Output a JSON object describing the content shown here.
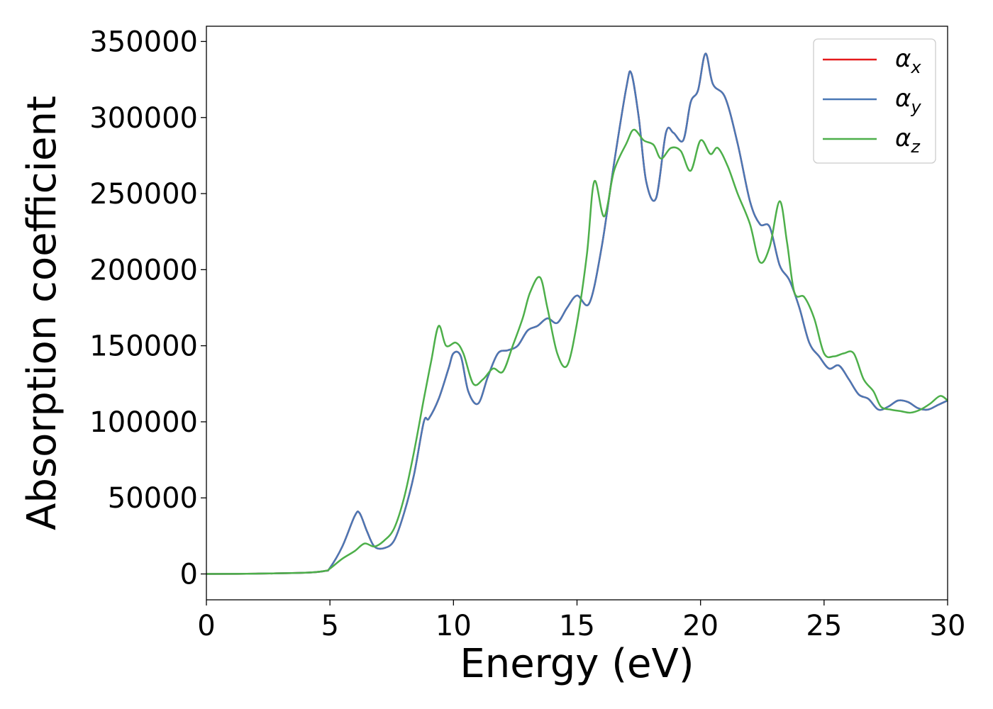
{
  "chart_data": {
    "type": "line",
    "title": "",
    "xlabel": "Energy (eV)",
    "ylabel": "Absorption coefficient",
    "xlim": [
      0,
      30
    ],
    "ylim": [
      -17000,
      360000
    ],
    "xticks": [
      0,
      5,
      10,
      15,
      20,
      25,
      30
    ],
    "xtick_labels": [
      "0",
      "5",
      "10",
      "15",
      "20",
      "25",
      "30"
    ],
    "yticks": [
      0,
      50000,
      100000,
      150000,
      200000,
      250000,
      300000,
      350000
    ],
    "ytick_labels": [
      "0",
      "50000",
      "100000",
      "150000",
      "200000",
      "250000",
      "300000",
      "350000"
    ],
    "grid": false,
    "legend_position": "top-right",
    "series": [
      {
        "name": "α",
        "subscript": "x",
        "color": "#e41a1c",
        "x": [
          0,
          2,
          4,
          4.8,
          5.0,
          5.5,
          6.0,
          6.2,
          6.5,
          6.8,
          7.2,
          7.6,
          8.0,
          8.4,
          8.8,
          9.0,
          9.4,
          9.8,
          10.0,
          10.3,
          10.6,
          11.0,
          11.4,
          11.8,
          12.2,
          12.6,
          13.0,
          13.4,
          13.8,
          14.2,
          14.6,
          15.0,
          15.5,
          16.0,
          16.5,
          17.0,
          17.2,
          17.5,
          17.8,
          18.2,
          18.6,
          18.9,
          19.3,
          19.6,
          19.9,
          20.2,
          20.5,
          21.0,
          21.5,
          22.0,
          22.4,
          22.8,
          23.2,
          23.6,
          24.0,
          24.4,
          24.8,
          25.2,
          25.6,
          26.0,
          26.4,
          26.8,
          27.2,
          27.6,
          28.0,
          28.4,
          28.8,
          29.2,
          29.6,
          30.0
        ],
        "y": [
          0,
          200,
          800,
          2000,
          4000,
          18000,
          38000,
          40000,
          28000,
          18000,
          17000,
          22000,
          40000,
          65000,
          100000,
          102000,
          115000,
          135000,
          145000,
          143000,
          120000,
          112000,
          130000,
          145000,
          147000,
          150000,
          160000,
          163000,
          168000,
          165000,
          175000,
          183000,
          178000,
          215000,
          270000,
          320000,
          329000,
          300000,
          258000,
          247000,
          290000,
          290000,
          285000,
          310000,
          318000,
          342000,
          322000,
          313000,
          283000,
          245000,
          230000,
          228000,
          203000,
          193000,
          175000,
          152000,
          143000,
          135000,
          137000,
          128000,
          118000,
          115000,
          108000,
          110000,
          114000,
          113000,
          109000,
          108000,
          111000,
          114000
        ]
      },
      {
        "name": "α",
        "subscript": "y",
        "color": "#4a78b5",
        "x": [
          0,
          2,
          4,
          4.8,
          5.0,
          5.5,
          6.0,
          6.2,
          6.5,
          6.8,
          7.2,
          7.6,
          8.0,
          8.4,
          8.8,
          9.0,
          9.4,
          9.8,
          10.0,
          10.3,
          10.6,
          11.0,
          11.4,
          11.8,
          12.2,
          12.6,
          13.0,
          13.4,
          13.8,
          14.2,
          14.6,
          15.0,
          15.5,
          16.0,
          16.5,
          17.0,
          17.2,
          17.5,
          17.8,
          18.2,
          18.6,
          18.9,
          19.3,
          19.6,
          19.9,
          20.2,
          20.5,
          21.0,
          21.5,
          22.0,
          22.4,
          22.8,
          23.2,
          23.6,
          24.0,
          24.4,
          24.8,
          25.2,
          25.6,
          26.0,
          26.4,
          26.8,
          27.2,
          27.6,
          28.0,
          28.4,
          28.8,
          29.2,
          29.6,
          30.0
        ],
        "y": [
          0,
          200,
          800,
          2000,
          4000,
          18000,
          38000,
          40000,
          28000,
          18000,
          17000,
          22000,
          40000,
          65000,
          100000,
          102000,
          115000,
          135000,
          145000,
          143000,
          120000,
          112000,
          130000,
          145000,
          147000,
          150000,
          160000,
          163000,
          168000,
          165000,
          175000,
          183000,
          178000,
          215000,
          270000,
          320000,
          329000,
          300000,
          258000,
          247000,
          290000,
          290000,
          285000,
          310000,
          318000,
          342000,
          322000,
          313000,
          283000,
          245000,
          230000,
          228000,
          203000,
          193000,
          175000,
          152000,
          143000,
          135000,
          137000,
          128000,
          118000,
          115000,
          108000,
          110000,
          114000,
          113000,
          109000,
          108000,
          111000,
          114000
        ]
      },
      {
        "name": "α",
        "subscript": "z",
        "color": "#4daf4a",
        "x": [
          0,
          2,
          4,
          4.8,
          5.0,
          5.5,
          6.0,
          6.4,
          6.8,
          7.2,
          7.6,
          8.0,
          8.4,
          8.8,
          9.1,
          9.4,
          9.7,
          10.1,
          10.4,
          10.8,
          11.2,
          11.6,
          12.0,
          12.4,
          12.8,
          13.1,
          13.5,
          13.8,
          14.2,
          14.6,
          15.0,
          15.4,
          15.7,
          16.1,
          16.5,
          17.0,
          17.3,
          17.7,
          18.1,
          18.4,
          18.8,
          19.2,
          19.6,
          20.0,
          20.4,
          20.7,
          21.1,
          21.5,
          22.0,
          22.4,
          22.8,
          23.2,
          23.5,
          23.8,
          24.2,
          24.6,
          25.0,
          25.4,
          25.8,
          26.2,
          26.6,
          27.0,
          27.3,
          27.7,
          28.1,
          28.5,
          28.9,
          29.3,
          29.7,
          30.0
        ],
        "y": [
          0,
          200,
          800,
          2000,
          3500,
          10000,
          15000,
          20000,
          18000,
          22000,
          30000,
          50000,
          80000,
          115000,
          140000,
          163000,
          150000,
          152000,
          145000,
          125000,
          128000,
          135000,
          133000,
          150000,
          168000,
          185000,
          195000,
          175000,
          145000,
          137000,
          165000,
          210000,
          258000,
          235000,
          265000,
          283000,
          292000,
          285000,
          282000,
          273000,
          280000,
          278000,
          265000,
          285000,
          276000,
          280000,
          268000,
          250000,
          230000,
          205000,
          215000,
          245000,
          218000,
          185000,
          182000,
          168000,
          145000,
          143000,
          145000,
          145000,
          128000,
          120000,
          110000,
          108000,
          107000,
          106000,
          108000,
          112000,
          117000,
          114000
        ]
      }
    ]
  }
}
